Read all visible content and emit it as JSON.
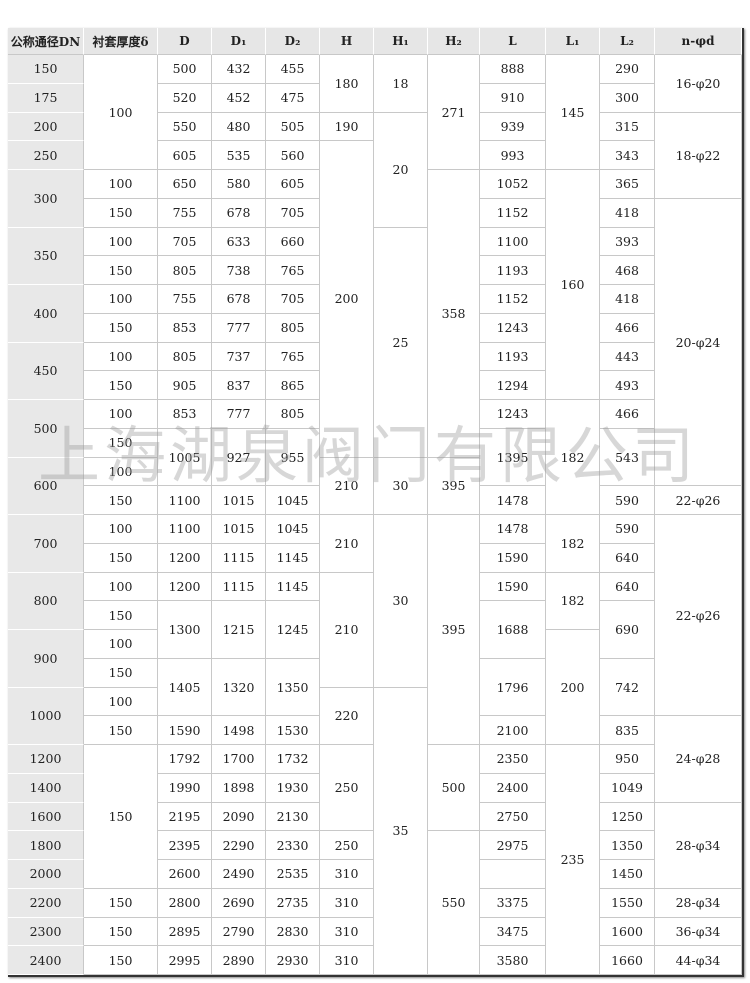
{
  "table": {
    "headers": [
      "公称通径DN",
      "衬套厚度δ",
      "D",
      "D₁",
      "D₂",
      "H",
      "H₁",
      "H₂",
      "L",
      "L₁",
      "L₂",
      "n-φd"
    ],
    "columns": {
      "dn": [
        "150",
        "175",
        "200",
        "250",
        "300",
        "350",
        "400",
        "450",
        "500",
        "600",
        "700",
        "800",
        "900",
        "1000",
        "1200",
        "1400",
        "1600",
        "1800",
        "2000",
        "2200",
        "2300",
        "2400"
      ],
      "thickness": [
        "100",
        "100",
        "150",
        "100",
        "150",
        "100",
        "150",
        "100",
        "150",
        "100",
        "150",
        "100",
        "150",
        "100",
        "150",
        "100",
        "150",
        "100",
        "150",
        "100",
        "150",
        "150",
        "150",
        "150",
        "150"
      ],
      "D": [
        "500",
        "520",
        "550",
        "605",
        "650",
        "755",
        "705",
        "805",
        "755",
        "853",
        "805",
        "905",
        "853",
        "1005",
        "1100",
        "1100",
        "1200",
        "1200",
        "1300",
        "1405",
        "1590",
        "1792",
        "1990",
        "2195",
        "2395",
        "2600",
        "2800",
        "2895",
        "2995"
      ],
      "D1": [
        "432",
        "452",
        "480",
        "535",
        "580",
        "678",
        "633",
        "738",
        "678",
        "777",
        "737",
        "837",
        "777",
        "927",
        "1015",
        "1015",
        "1115",
        "1115",
        "1215",
        "1320",
        "1498",
        "1700",
        "1898",
        "2090",
        "2290",
        "2490",
        "2690",
        "2790",
        "2890"
      ],
      "D2": [
        "455",
        "475",
        "505",
        "560",
        "605",
        "705",
        "660",
        "765",
        "705",
        "805",
        "765",
        "865",
        "805",
        "955",
        "1045",
        "1045",
        "1145",
        "1145",
        "1245",
        "1350",
        "1530",
        "1732",
        "1930",
        "2130",
        "2330",
        "2535",
        "2735",
        "2830",
        "2930"
      ],
      "H": [
        "180",
        "190",
        "200",
        "210",
        "210",
        "210",
        "220",
        "250",
        "250",
        "310",
        "310",
        "310",
        "310"
      ],
      "H1": [
        "18",
        "20",
        "25",
        "30",
        "30",
        "35"
      ],
      "H2": [
        "271",
        "358",
        "395",
        "395",
        "500",
        "550"
      ],
      "L": [
        "888",
        "910",
        "939",
        "993",
        "1052",
        "1152",
        "1100",
        "1193",
        "1152",
        "1243",
        "1193",
        "1294",
        "1243",
        "1395",
        "1478",
        "1478",
        "1590",
        "1590",
        "1688",
        "1796",
        "2100",
        "2350",
        "2400",
        "2750",
        "2975",
        "",
        "3375",
        "3475",
        "3580"
      ],
      "L1": [
        "145",
        "160",
        "182",
        "182",
        "182",
        "200",
        "235"
      ],
      "L2": [
        "290",
        "300",
        "315",
        "343",
        "365",
        "418",
        "393",
        "468",
        "418",
        "466",
        "443",
        "493",
        "466",
        "543",
        "590",
        "590",
        "640",
        "640",
        "690",
        "742",
        "835",
        "950",
        "1049",
        "1250",
        "1350",
        "1450",
        "1550",
        "1600",
        "1660"
      ],
      "nd": [
        "16-φ20",
        "18-φ22",
        "20-φ24",
        "22-φ26",
        "22-φ26",
        "24-φ28",
        "28-φ34",
        "28-φ34",
        "36-φ34",
        "44-φ34"
      ]
    }
  },
  "watermark": "上海湖泉阀门有限公司",
  "colors": {
    "header_bg": "#e6e6e6",
    "dn_bg": "#e8e8e8",
    "grid": "#c8c8c8"
  }
}
